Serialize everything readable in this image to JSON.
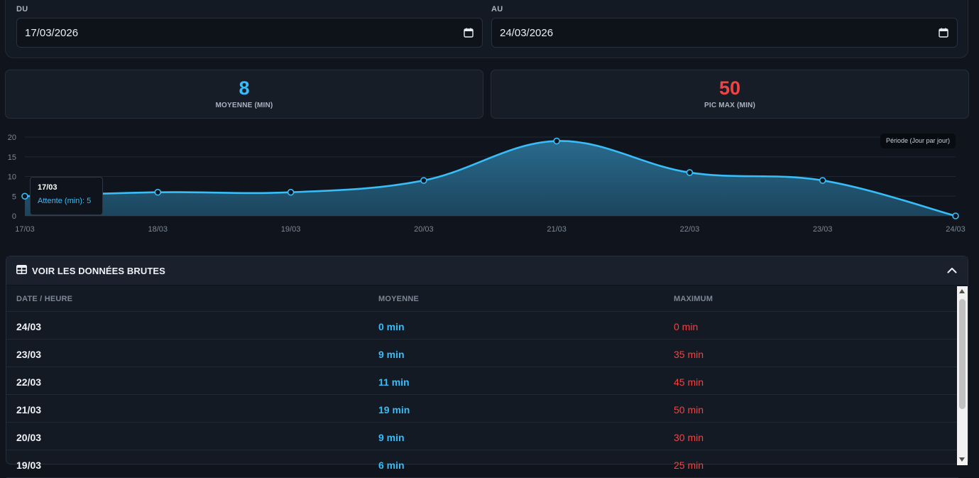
{
  "filters": {
    "from_label": "DU",
    "from_value": "17/03/2026",
    "to_label": "AU",
    "to_value": "24/03/2026"
  },
  "stats": {
    "average": {
      "value": "8",
      "label": "MOYENNE (MIN)",
      "color": "#38bdf8"
    },
    "peak": {
      "value": "50",
      "label": "PIC MAX (MIN)",
      "color": "#ef4444"
    }
  },
  "chart_data": {
    "type": "area",
    "x": [
      "17/03",
      "18/03",
      "19/03",
      "20/03",
      "21/03",
      "22/03",
      "23/03",
      "24/03"
    ],
    "series": [
      {
        "name": "Attente (min)",
        "values": [
          5,
          6,
          6,
          9,
          19,
          11,
          9,
          0
        ],
        "color": "#38bdf8"
      }
    ],
    "y_ticks": [
      "0",
      "5",
      "10",
      "15",
      "20"
    ],
    "ylim": [
      0,
      20
    ],
    "grid": true,
    "legend": "Période (Jour par jour)",
    "legend_position": "top-right",
    "tooltip": {
      "title": "17/03",
      "text": "Attente (min): 5"
    }
  },
  "raw_panel": {
    "title": "VOIR LES DONNÉES BRUTES",
    "columns": [
      "DATE / HEURE",
      "MOYENNE",
      "MAXIMUM"
    ],
    "rows": [
      {
        "date": "24/03",
        "avg": "0 min",
        "max": "0 min"
      },
      {
        "date": "23/03",
        "avg": "9 min",
        "max": "35 min"
      },
      {
        "date": "22/03",
        "avg": "11 min",
        "max": "45 min"
      },
      {
        "date": "21/03",
        "avg": "19 min",
        "max": "50 min"
      },
      {
        "date": "20/03",
        "avg": "9 min",
        "max": "30 min"
      },
      {
        "date": "19/03",
        "avg": "6 min",
        "max": "25 min"
      }
    ]
  },
  "icons": {
    "calendar": "calendar-icon",
    "table": "table-icon",
    "collapse": "chevron-up-icon"
  }
}
